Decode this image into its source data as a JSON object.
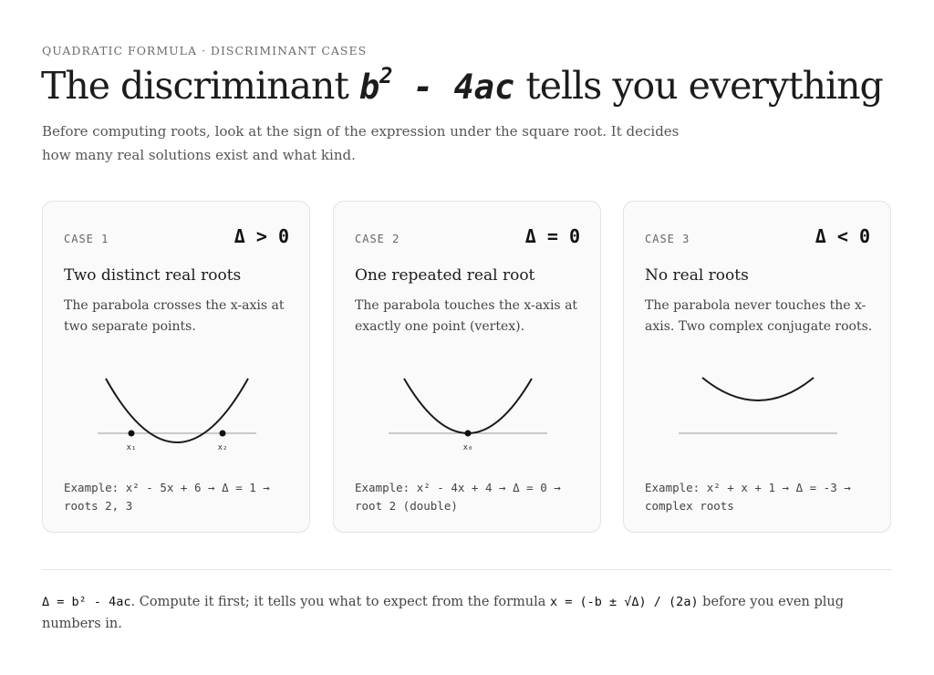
{
  "header": {
    "eyebrow": "QUADRATIC FORMULA · DISCRIMINANT CASES",
    "title_before": "The discriminant ",
    "title_math_base": "b",
    "title_math_exp": "2",
    "title_math_rest": " - 4ac",
    "title_after": " tells you everything",
    "lede": "Before computing roots, look at the sign of the expression under the square root. It decides how many real solutions exist and what kind."
  },
  "cases": [
    {
      "label": "CASE 1",
      "condition": "Δ > 0",
      "title": "Two distinct real roots",
      "description": "The parabola crosses the x-axis at two separate points.",
      "root_labels": [
        "x₁",
        "x₂"
      ],
      "example": "Example: x² - 5x + 6 → Δ = 1 → roots 2, 3"
    },
    {
      "label": "CASE 2",
      "condition": "Δ = 0",
      "title": "One repeated real root",
      "description": "The parabola touches the x-axis at exactly one point (vertex).",
      "root_labels": [
        "x₀"
      ],
      "example": "Example: x² - 4x + 4 → Δ = 0 → root 2 (double)"
    },
    {
      "label": "CASE 3",
      "condition": "Δ < 0",
      "title": "No real roots",
      "description": "The parabola never touches the x-axis. Two complex conjugate roots.",
      "root_labels": [],
      "example": "Example: x² + x + 1 → Δ = -3 → complex roots"
    }
  ],
  "footer": {
    "formula": "Δ = b² - 4ac",
    "text_1": ". Compute it first; it tells you what to expect from the formula ",
    "formula_2": "x = (-b ± √Δ) / (2a)",
    "text_2": " before you even plug numbers in."
  },
  "colors": {
    "curve": "#1a1a1a",
    "axis": "#9a9a9a",
    "card_background": "#fafafa",
    "card_border": "#e3e3e3"
  }
}
